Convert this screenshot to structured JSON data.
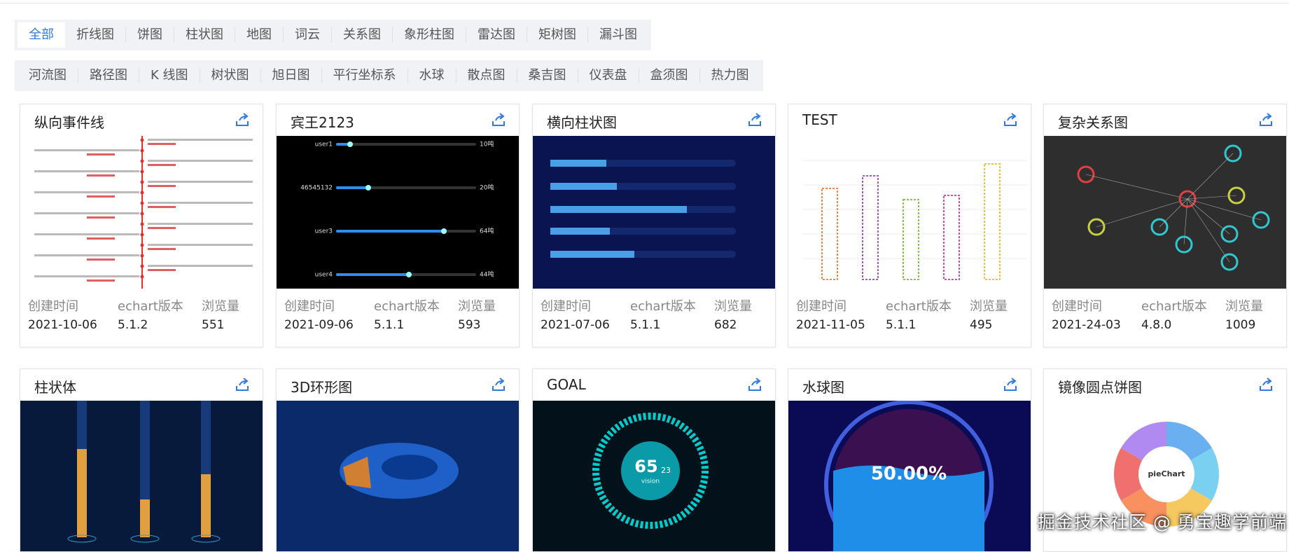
{
  "tabs_row1": [
    "全部",
    "折线图",
    "饼图",
    "柱状图",
    "地图",
    "词云",
    "关系图",
    "象形柱图",
    "雷达图",
    "矩树图",
    "漏斗图"
  ],
  "tabs_row2": [
    "河流图",
    "路径图",
    "K 线图",
    "树状图",
    "旭日图",
    "平行坐标系",
    "水球",
    "散点图",
    "桑吉图",
    "仪表盘",
    "盒须图",
    "热力图"
  ],
  "meta_labels": [
    "创建时间",
    "echart版本",
    "浏览量"
  ],
  "cards": [
    {
      "title": "纵向事件线",
      "created": "2021-10-06",
      "version": "5.1.2",
      "views": 551
    },
    {
      "title": "宾王2123",
      "created": "2021-09-06",
      "version": "5.1.1",
      "views": 593,
      "thumb_texts": [
        "user1",
        "46545132",
        "user3",
        "user4",
        "10吨",
        "20吨",
        "64吨",
        "44吨"
      ]
    },
    {
      "title": "横向柱状图",
      "created": "2021-07-06",
      "version": "5.1.1",
      "views": 682
    },
    {
      "title": "TEST",
      "created": "2021-11-05",
      "version": "5.1.1",
      "views": 495
    },
    {
      "title": "复杂关系图",
      "created": "2021-24-03",
      "version": "4.8.0",
      "views": 1009
    },
    {
      "title": "柱状体"
    },
    {
      "title": "3D环形图"
    },
    {
      "title": "GOAL",
      "thumb_texts": [
        "65",
        "23",
        "vision"
      ]
    },
    {
      "title": "水球图",
      "thumb_texts": [
        "50.00%"
      ]
    },
    {
      "title": "镜像圆点饼图",
      "thumb_texts": [
        "pieChart"
      ]
    }
  ],
  "watermark": "掘金技术社区 @ 勇宝趣学前端"
}
